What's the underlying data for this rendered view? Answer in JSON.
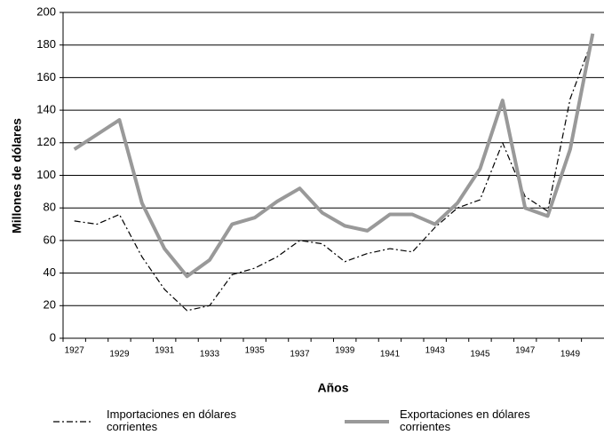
{
  "chart_data": {
    "type": "line",
    "x_label": "Años",
    "y_label": "Millones de dólares",
    "categories": [
      "1927",
      null,
      "1929",
      null,
      "1931",
      null,
      "1933",
      null,
      "1935",
      null,
      "1937",
      null,
      "1939",
      null,
      "1941",
      null,
      "1943",
      null,
      "1945",
      null,
      "1947",
      null,
      "1949",
      null
    ],
    "series": [
      {
        "name": "Importaciones en dólares corrientes",
        "color": "#000000",
        "style": "dashdot",
        "values": [
          72,
          70,
          76,
          50,
          30,
          17,
          20,
          39,
          43,
          50,
          60,
          58,
          47,
          52,
          55,
          53,
          68,
          80,
          85,
          120,
          87,
          78,
          147,
          184
        ]
      },
      {
        "name": "Exportaciones en dólares corrientes",
        "color": "#999999",
        "style": "solid",
        "values": [
          116,
          125,
          134,
          83,
          55,
          38,
          48,
          70,
          74,
          84,
          92,
          77,
          69,
          66,
          76,
          76,
          70,
          83,
          104,
          146,
          80,
          75,
          116,
          187
        ]
      }
    ],
    "ylim": [
      0,
      200
    ],
    "yticks": [
      0,
      20,
      40,
      60,
      80,
      100,
      120,
      140,
      160,
      180,
      200
    ],
    "grid": true
  }
}
